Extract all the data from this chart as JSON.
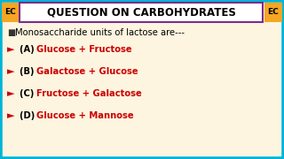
{
  "bg_color": "#fdf5e0",
  "border_color": "#00b4d8",
  "title": "QUESTION ON CARBOHYDRATES",
  "title_box_color": "#ffffff",
  "title_box_border": "#7b2d8b",
  "title_fontsize": 8.5,
  "ec_label": "EC",
  "ec_bg": "#f5a623",
  "ec_fg": "#000000",
  "question_fontsize": 7.2,
  "options": [
    [
      "(A) ",
      "Glucose + Fructose"
    ],
    [
      "(B) ",
      "Galactose + Glucose"
    ],
    [
      "(C) ",
      "Fructose + Galactose"
    ],
    [
      "(D) ",
      "Glucose + Mannose"
    ]
  ],
  "option_color": "#cc0000",
  "option_fontsize": 7.2,
  "arrow_color": "#cc0000"
}
